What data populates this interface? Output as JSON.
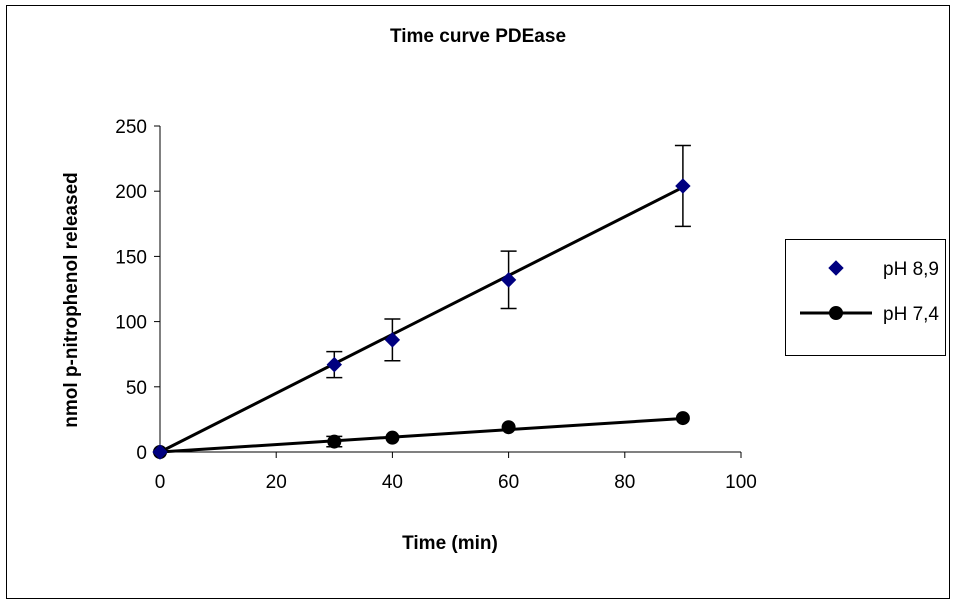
{
  "chart_data": {
    "type": "scatter",
    "title": "Time curve PDEase",
    "xlabel": "Time (min)",
    "ylabel": "nmol p-nitrophenol released",
    "xlim": [
      0,
      100
    ],
    "ylim": [
      0,
      250
    ],
    "xticks": [
      "0",
      "20",
      "40",
      "60",
      "80",
      "100"
    ],
    "yticks": [
      "0",
      "50",
      "100",
      "150",
      "200",
      "250"
    ],
    "grid": false,
    "legend_position": "right",
    "series": [
      {
        "name": "pH 8,9",
        "marker": "diamond",
        "color": "#000080",
        "x": [
          0,
          30,
          40,
          60,
          90
        ],
        "y": [
          0,
          67,
          86,
          132,
          204
        ],
        "error": [
          0,
          10,
          16,
          22,
          31
        ],
        "trendline": {
          "from": [
            0,
            0
          ],
          "to": [
            90,
            203
          ]
        }
      },
      {
        "name": "pH 7,4",
        "marker": "circle",
        "color": "#000000",
        "x": [
          0,
          30,
          40,
          60,
          90
        ],
        "y": [
          0,
          8,
          11,
          19,
          26
        ],
        "error": [
          0,
          4,
          0,
          0,
          0
        ],
        "trendline": {
          "from": [
            0,
            0
          ],
          "to": [
            91,
            26
          ]
        }
      }
    ]
  }
}
